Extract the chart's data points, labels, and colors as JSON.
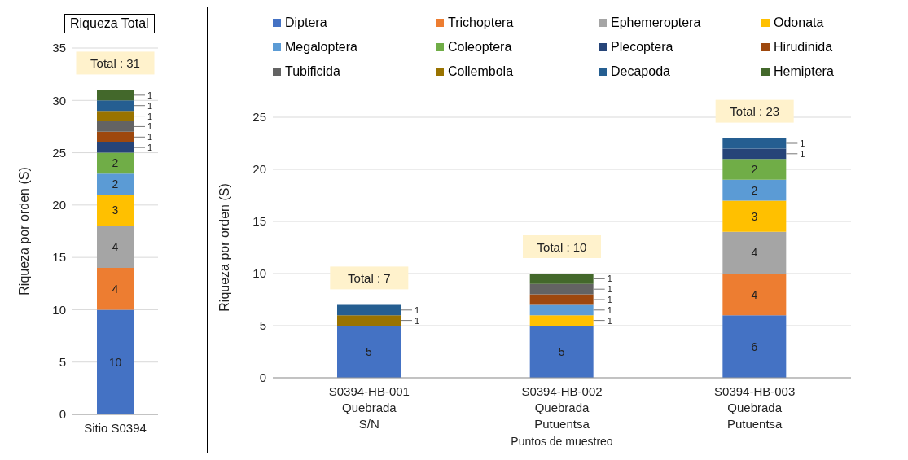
{
  "chart_data": [
    {
      "type": "bar",
      "title": "Riqueza Total",
      "ylabel": "Riqueza por orden (S)",
      "categories": [
        "Sitio S0394"
      ],
      "ylim": [
        0,
        35
      ],
      "yticks": [
        0,
        5,
        10,
        15,
        20,
        25,
        30,
        35
      ],
      "grid": "y",
      "stacked": true,
      "data_labels": true,
      "legend": false,
      "totals": [
        "Total : 31"
      ],
      "series": [
        {
          "color": "#4472c4",
          "values": [
            10
          ]
        },
        {
          "color": "#ed7d31",
          "values": [
            4
          ]
        },
        {
          "color": "#a5a5a5",
          "values": [
            4
          ]
        },
        {
          "color": "#ffc000",
          "values": [
            3
          ]
        },
        {
          "color": "#5b9bd5",
          "values": [
            2
          ]
        },
        {
          "color": "#70ad47",
          "values": [
            2
          ]
        },
        {
          "color": "#264478",
          "values": [
            1
          ]
        },
        {
          "color": "#9e480e",
          "values": [
            1
          ]
        },
        {
          "color": "#636363",
          "values": [
            1
          ]
        },
        {
          "color": "#997300",
          "values": [
            1
          ]
        },
        {
          "color": "#255e91",
          "values": [
            1
          ]
        },
        {
          "color": "#43682b",
          "values": [
            1
          ]
        }
      ]
    },
    {
      "type": "bar",
      "xlabel": "Puntos de muestreo",
      "ylabel": "Riqueza por orden (S)",
      "categories": [
        "S0394-HB-001\nQuebrada\nS/N",
        "S0394-HB-002\nQuebrada\nPutuentsa",
        "S0394-HB-003\nQuebrada\nPutuentsa"
      ],
      "ylim": [
        0,
        25
      ],
      "yticks": [
        0,
        5,
        10,
        15,
        20,
        25
      ],
      "grid": "y",
      "stacked": true,
      "data_labels": true,
      "legend": "top",
      "totals": [
        "Total : 7",
        "Total : 10",
        "Total : 23"
      ],
      "series": [
        {
          "name": "Diptera",
          "color": "#4472c4",
          "values": [
            5,
            5,
            6
          ]
        },
        {
          "name": "Trichoptera",
          "color": "#ed7d31",
          "values": [
            null,
            null,
            4
          ]
        },
        {
          "name": "Ephemeroptera",
          "color": "#a5a5a5",
          "values": [
            null,
            null,
            4
          ]
        },
        {
          "name": "Odonata",
          "color": "#ffc000",
          "values": [
            null,
            1,
            3
          ]
        },
        {
          "name": "Megaloptera",
          "color": "#5b9bd5",
          "values": [
            null,
            1,
            2
          ]
        },
        {
          "name": "Coleoptera",
          "color": "#70ad47",
          "values": [
            null,
            null,
            2
          ]
        },
        {
          "name": "Plecoptera",
          "color": "#264478",
          "values": [
            null,
            null,
            1
          ]
        },
        {
          "name": "Hirudinida",
          "color": "#9e480e",
          "values": [
            null,
            1,
            null
          ]
        },
        {
          "name": "Tubificida",
          "color": "#636363",
          "values": [
            null,
            1,
            null
          ]
        },
        {
          "name": "Collembola",
          "color": "#997300",
          "values": [
            1,
            null,
            null
          ]
        },
        {
          "name": "Decapoda",
          "color": "#255e91",
          "values": [
            1,
            null,
            1
          ]
        },
        {
          "name": "Hemiptera",
          "color": "#43682b",
          "values": [
            null,
            1,
            null
          ]
        }
      ]
    }
  ]
}
